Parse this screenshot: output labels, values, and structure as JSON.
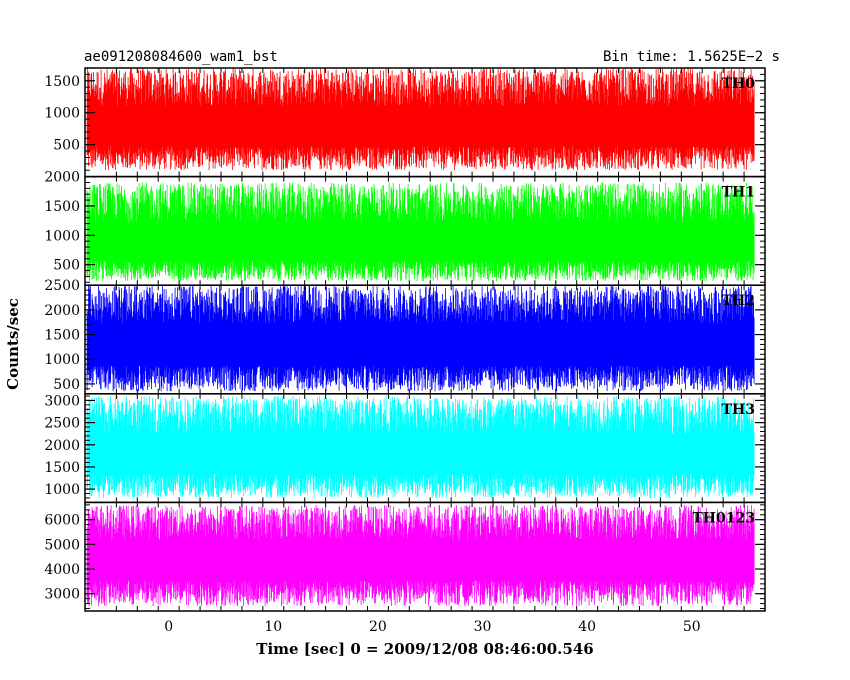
{
  "header": {
    "left_title": "ae091208084600_wam1_bst",
    "right_title": "Bin time: 1.5625E−2 s"
  },
  "chart_data": {
    "type": "line",
    "xlabel": "Time [sec] 0 = 2009/12/08 08:46:00.546",
    "ylabel": "Counts/sec",
    "xlim": [
      -8,
      57
    ],
    "x_range_data": [
      -7.8,
      56.0
    ],
    "x_ticks": [
      0,
      10,
      20,
      30,
      40,
      50
    ],
    "panels": [
      {
        "name": "TH0",
        "color": "#ff0000",
        "ylim": [
          0,
          1700
        ],
        "y_ticks": [
          500,
          1000,
          1500
        ],
        "data_low": 100,
        "data_high": 1700,
        "mean": 780
      },
      {
        "name": "TH1",
        "color": "#00ff00",
        "ylim": [
          150,
          2000
        ],
        "y_ticks": [
          500,
          1000,
          1500,
          2000
        ],
        "data_low": 220,
        "data_high": 1900,
        "mean": 850
      },
      {
        "name": "TH2",
        "color": "#0000ff",
        "ylim": [
          300,
          2500
        ],
        "y_ticks": [
          500,
          1000,
          1500,
          2000,
          2500
        ],
        "data_low": 350,
        "data_high": 2500,
        "mean": 1300
      },
      {
        "name": "TH3",
        "color": "#00ffff",
        "ylim": [
          700,
          3150
        ],
        "y_ticks": [
          1000,
          1500,
          2000,
          2500,
          3000
        ],
        "data_low": 800,
        "data_high": 3100,
        "mean": 1800
      },
      {
        "name": "TH0123",
        "color": "#ff00ff",
        "ylim": [
          2300,
          6700
        ],
        "y_ticks": [
          3000,
          4000,
          5000,
          6000
        ],
        "data_low": 2500,
        "data_high": 6600,
        "mean": 4400
      }
    ]
  }
}
